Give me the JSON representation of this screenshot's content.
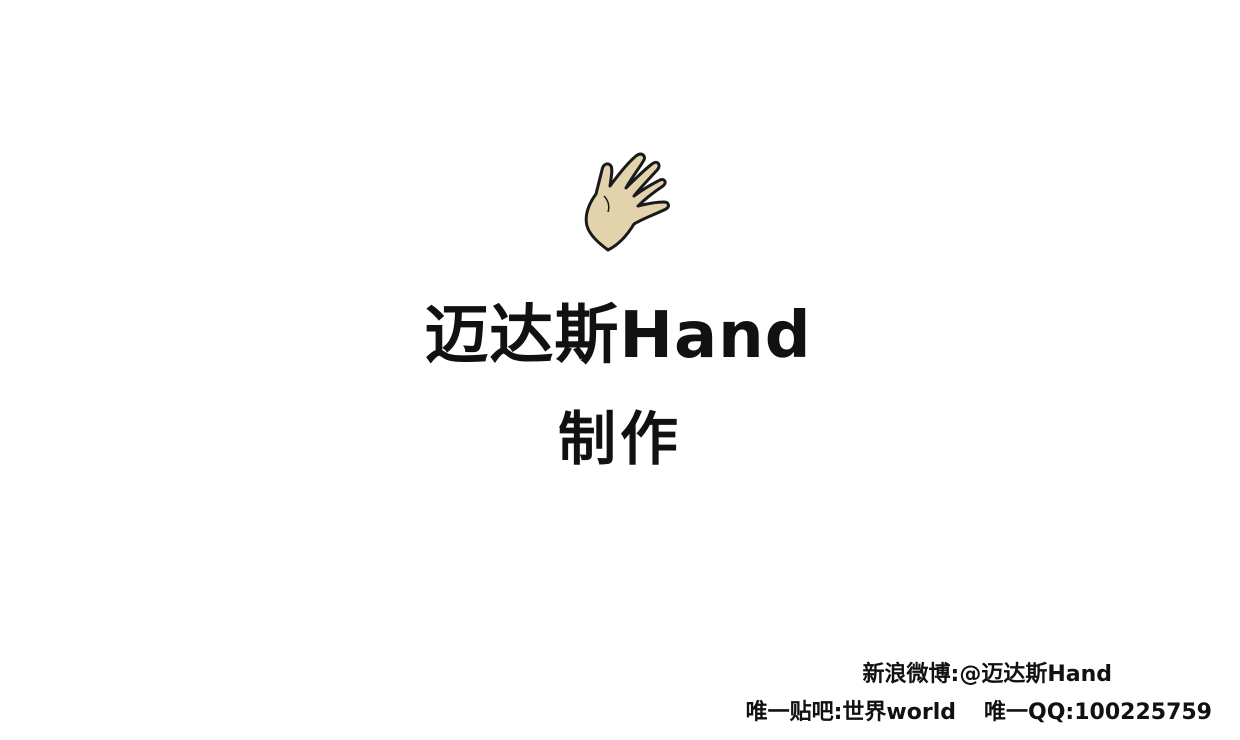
{
  "title": "迈达斯Hand",
  "subtitle": "制作",
  "credits": {
    "weibo": "新浪微博:@迈达斯Hand",
    "tieba": "唯一贴吧:世界world",
    "qq": "唯一QQ:100225759"
  },
  "icon": "waving-hand",
  "colors": {
    "background": "#ffffff",
    "hand_fill": "#e3d3ad",
    "text": "#111111"
  }
}
